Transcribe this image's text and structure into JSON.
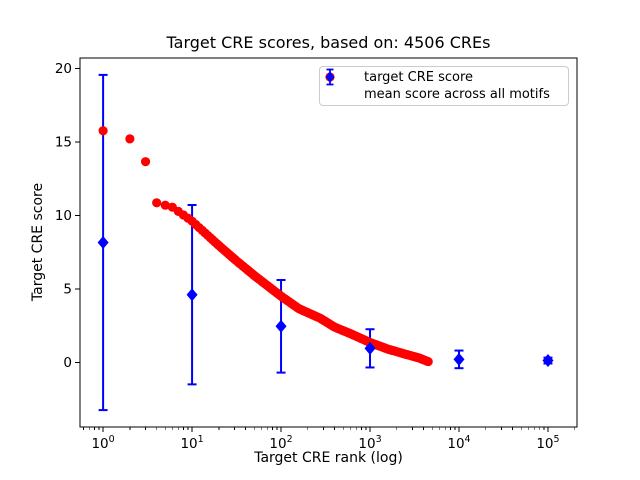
{
  "figure": {
    "title": "Target CRE scores, based on: 4506 CREs",
    "xlabel": "Target CRE rank (log)",
    "ylabel": "Target CRE score",
    "background_color": "#ffffff"
  },
  "legend": {
    "entries": [
      {
        "label": "target CRE score",
        "marker": "circle",
        "color": "#ff0000"
      },
      {
        "label": "mean score across all motifs",
        "marker": "diamond-with-errorbar",
        "color": "#0000ff"
      }
    ]
  },
  "chart_data": {
    "type": "scatter",
    "title": "Target CRE scores, based on: 4506 CREs",
    "xlabel": "Target CRE rank (log)",
    "ylabel": "Target CRE score",
    "x_scale": "log",
    "xlim": [
      0.55,
      212000
    ],
    "ylim": [
      -4.4,
      20.7
    ],
    "x_ticks": [
      1,
      10,
      100,
      1000,
      10000,
      100000
    ],
    "y_ticks": [
      0,
      5,
      10,
      15,
      20
    ],
    "grid": false,
    "legend_position": "upper right inside axes",
    "series": [
      {
        "name": "target CRE score",
        "type": "scatter",
        "marker": "circle",
        "color": "#ff0000",
        "n_points": 4506,
        "x_is_rank": true,
        "description": "monotonically decreasing score vs rank for all 4506 CREs; dense overlapping markers form a continuous band from rank ~4 to 4506",
        "anchors_log10rank_to_score": [
          [
            0,
            15.75
          ],
          [
            0.301,
            15.2
          ],
          [
            0.477,
            13.65
          ],
          [
            0.602,
            10.85
          ],
          [
            0.78,
            10.55
          ],
          [
            1.0,
            9.6
          ],
          [
            1.3,
            7.95
          ],
          [
            1.48,
            7.0
          ],
          [
            1.7,
            5.9
          ],
          [
            2.0,
            4.5
          ],
          [
            2.2,
            3.65
          ],
          [
            2.44,
            3.0
          ],
          [
            2.6,
            2.4
          ],
          [
            2.78,
            1.95
          ],
          [
            3.0,
            1.35
          ],
          [
            3.2,
            0.9
          ],
          [
            3.4,
            0.55
          ],
          [
            3.55,
            0.3
          ],
          [
            3.6539,
            0.05
          ]
        ]
      },
      {
        "name": "mean score across all motifs",
        "type": "errorbar",
        "marker": "diamond",
        "color": "#0000ff",
        "x": [
          1,
          10,
          100,
          1000,
          10000,
          100000
        ],
        "y": [
          8.15,
          4.6,
          2.45,
          0.95,
          0.2,
          0.12
        ],
        "yerr": [
          11.4,
          6.1,
          3.15,
          1.3,
          0.6,
          0.2
        ]
      }
    ]
  }
}
